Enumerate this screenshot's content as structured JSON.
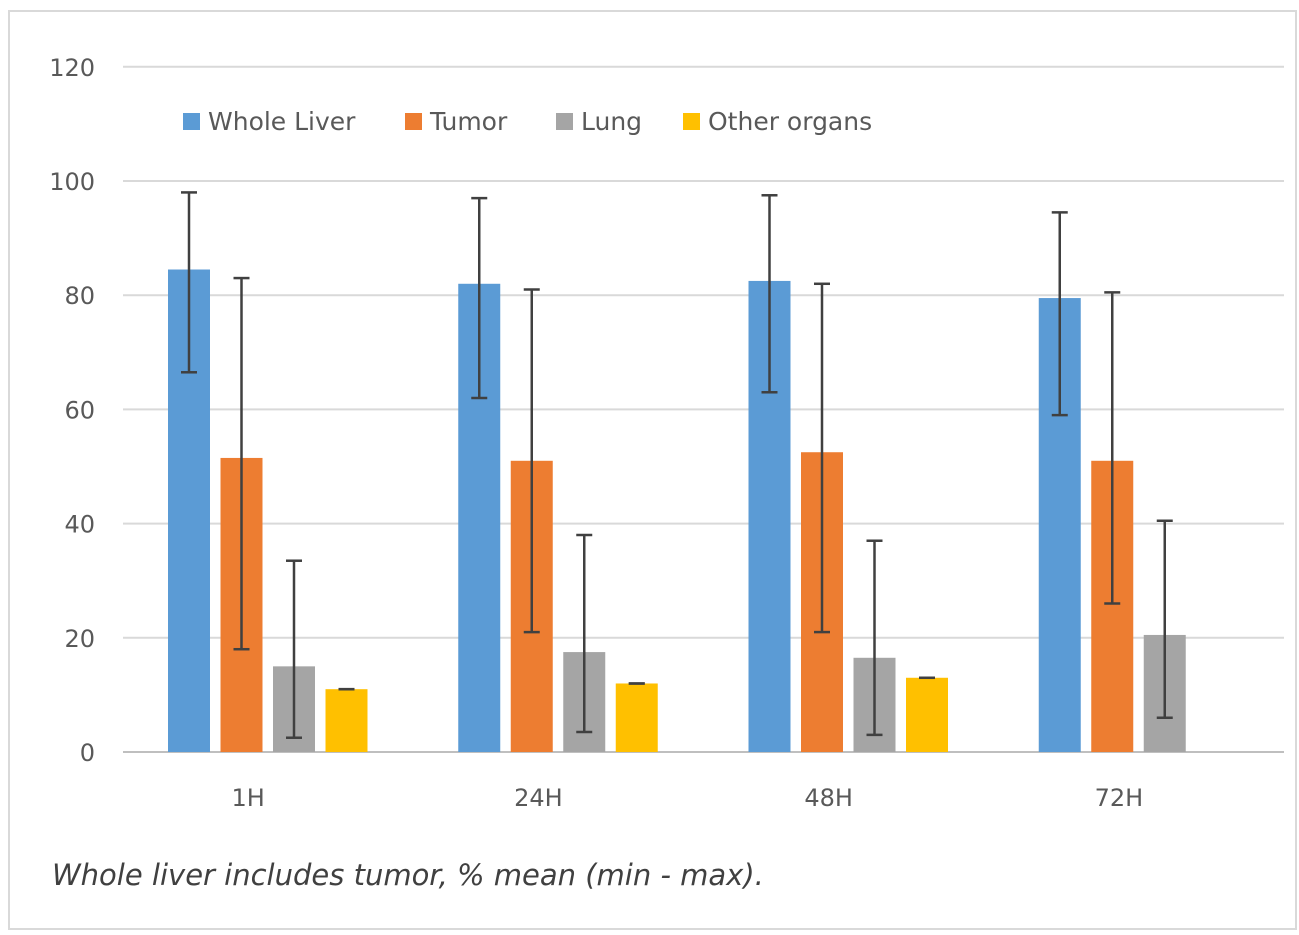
{
  "chart_data": {
    "type": "bar",
    "title": "",
    "xlabel": "",
    "ylabel": "",
    "ylim": [
      0,
      120
    ],
    "yticks": [
      0,
      20,
      40,
      60,
      80,
      100,
      120
    ],
    "grid": true,
    "legend_position": "top-left",
    "categories": [
      "1H",
      "24H",
      "48H",
      "72H"
    ],
    "series": [
      {
        "name": "Whole Liver",
        "color": "#5b9bd5",
        "values": [
          84.5,
          82,
          82.5,
          79.5
        ],
        "err_low": [
          66.5,
          62,
          63,
          59
        ],
        "err_high": [
          98,
          97,
          97.5,
          94.5
        ]
      },
      {
        "name": "Tumor",
        "color": "#ed7d31",
        "values": [
          51.5,
          51,
          52.5,
          51
        ],
        "err_low": [
          18,
          21,
          21,
          26
        ],
        "err_high": [
          83,
          81,
          82,
          80.5
        ]
      },
      {
        "name": "Lung",
        "color": "#a5a5a5",
        "values": [
          15,
          17.5,
          16.5,
          20.5
        ],
        "err_low": [
          2.5,
          3.5,
          3,
          6
        ],
        "err_high": [
          33.5,
          38,
          37,
          40.5
        ]
      },
      {
        "name": "Other organs",
        "color": "#ffc000",
        "values": [
          11,
          12,
          13,
          null
        ],
        "err_low": [
          11,
          12,
          13,
          null
        ],
        "err_high": [
          11,
          12,
          13,
          null
        ]
      }
    ]
  },
  "caption": "Whole liver includes tumor, % mean (min - max)."
}
